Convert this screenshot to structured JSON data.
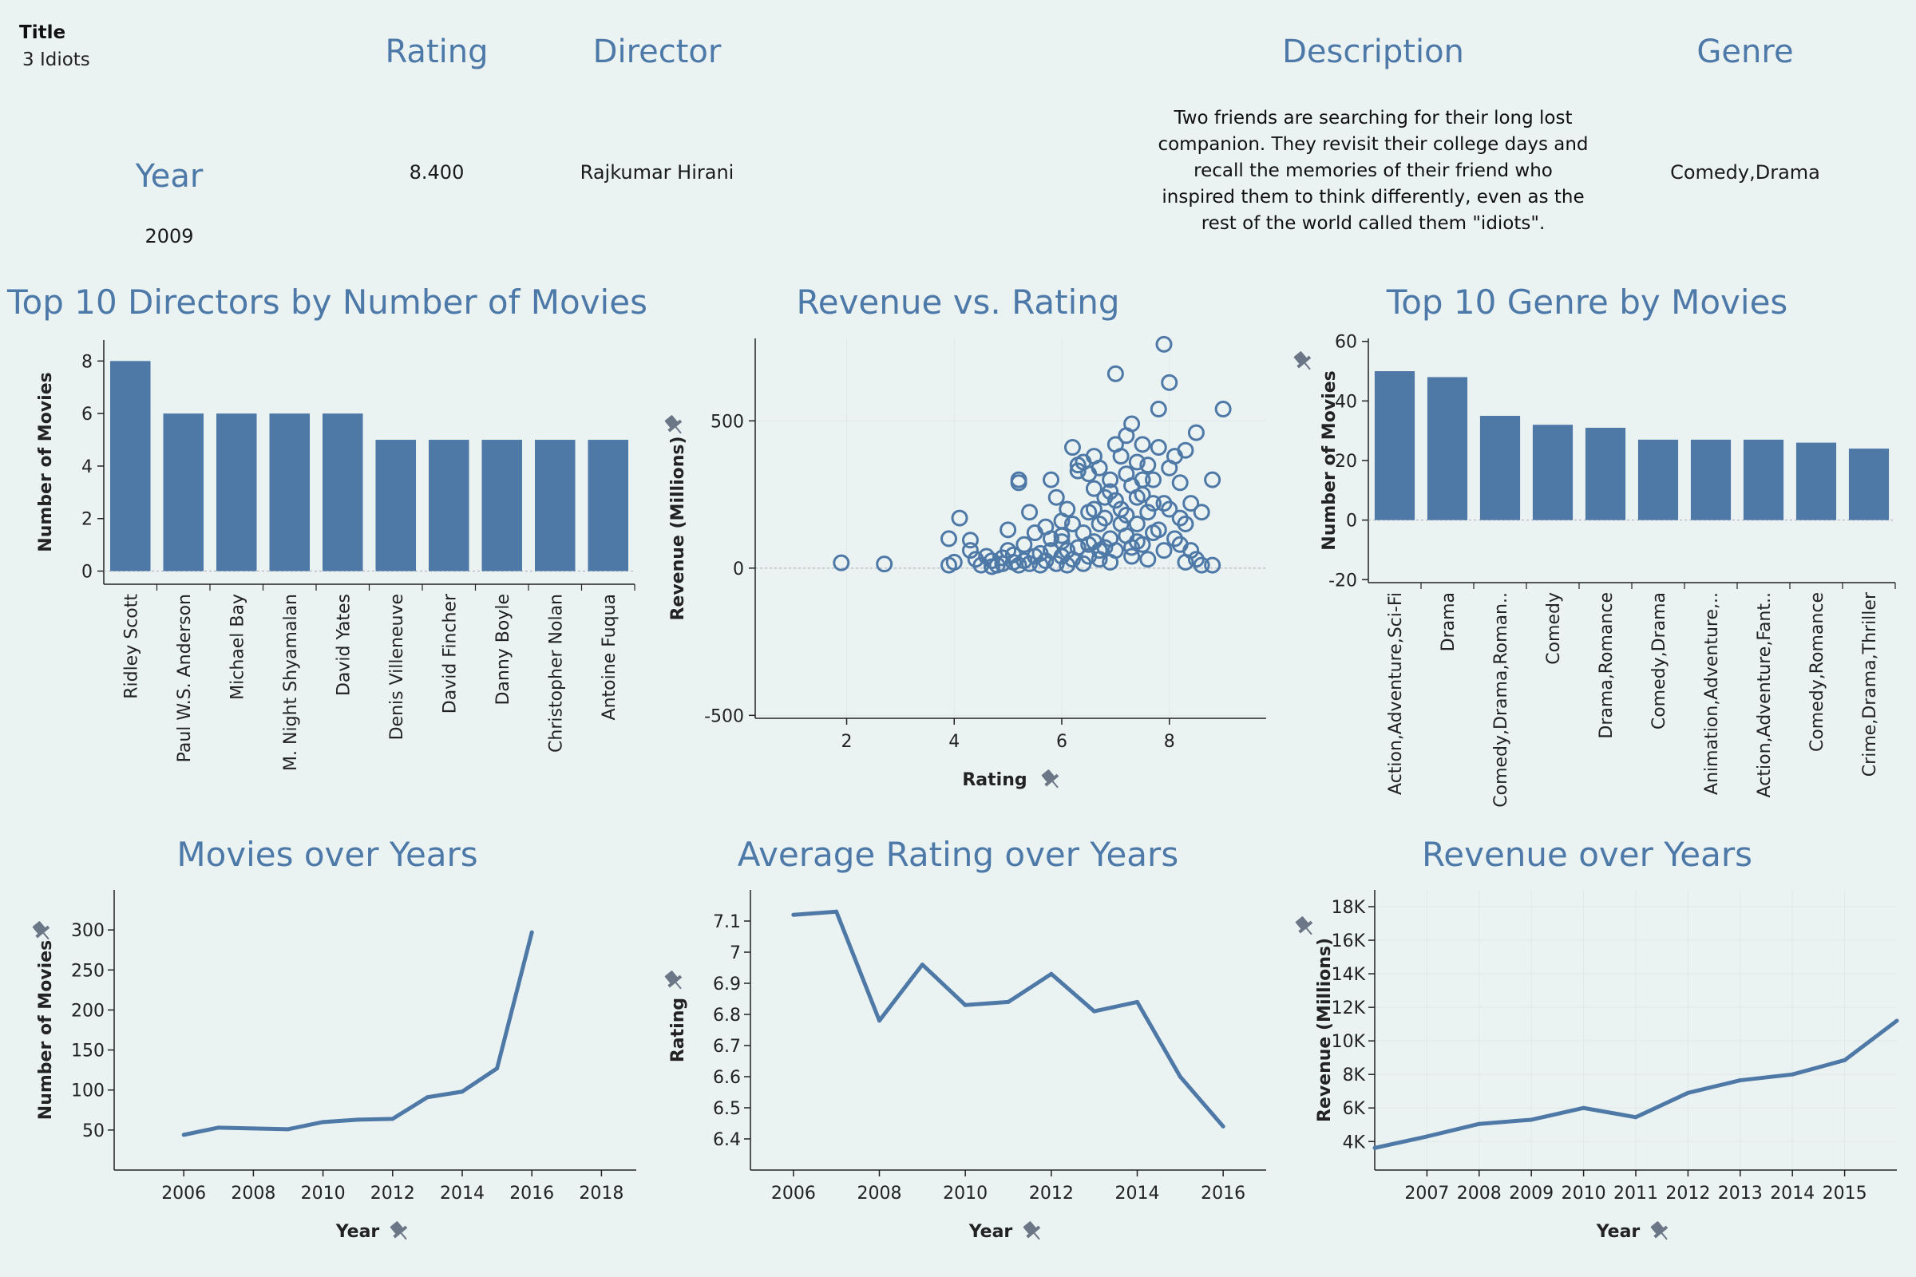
{
  "details": {
    "title_label": "Title",
    "title_value": "3 Idiots",
    "rating_label": "Rating",
    "rating_value": "8.400",
    "director_label": "Director",
    "director_value": "Rajkumar Hirani",
    "description_label": "Description",
    "description_value": "Two friends are searching for their long lost companion. They revisit their college days and recall the memories of their friend who inspired them to think differently, even as the rest of the world called them \"idiots\".",
    "genre_label": "Genre",
    "genre_value": "Comedy,Drama",
    "year_label": "Year",
    "year_value": "2009"
  },
  "colors": {
    "accent": "#4e79a7",
    "background": "#ebf2f2"
  },
  "icons": [
    "pin-icon"
  ],
  "chart_data": [
    {
      "id": "directors",
      "type": "bar",
      "title": "Top 10 Directors by Number of Movies",
      "xlabel": "",
      "ylabel": "Number of Movies",
      "categories": [
        "Ridley Scott",
        "Paul W.S. Anderson",
        "Michael Bay",
        "M. Night Shyamalan",
        "David Yates",
        "Denis Villeneuve",
        "David Fincher",
        "Danny Boyle",
        "Christopher Nolan",
        "Antoine Fuqua"
      ],
      "values": [
        8,
        6,
        6,
        6,
        6,
        5,
        5,
        5,
        5,
        5
      ],
      "ylim": [
        -0.5,
        8.8
      ],
      "yticks": [
        0,
        2,
        4,
        6,
        8
      ]
    },
    {
      "id": "revenue_rating",
      "type": "scatter",
      "title": "Revenue vs. Rating",
      "xlabel": "Rating",
      "ylabel": "Revenue (Millions)",
      "xlim": [
        0.3,
        9.8
      ],
      "ylim": [
        -510,
        780
      ],
      "xticks": [
        2,
        4,
        6,
        8
      ],
      "yticks": [
        -500,
        0,
        500
      ],
      "points": [
        [
          1.9,
          18
        ],
        [
          2.7,
          14
        ],
        [
          3.9,
          10
        ],
        [
          4.0,
          20
        ],
        [
          3.9,
          100
        ],
        [
          4.1,
          170
        ],
        [
          4.3,
          95
        ],
        [
          4.3,
          60
        ],
        [
          4.4,
          30
        ],
        [
          4.5,
          10
        ],
        [
          4.6,
          40
        ],
        [
          4.7,
          25
        ],
        [
          4.8,
          10
        ],
        [
          4.9,
          35
        ],
        [
          5.0,
          60
        ],
        [
          5.0,
          130
        ],
        [
          5.1,
          20
        ],
        [
          5.2,
          290
        ],
        [
          5.2,
          300
        ],
        [
          5.3,
          80
        ],
        [
          5.4,
          190
        ],
        [
          5.5,
          120
        ],
        [
          5.6,
          50
        ],
        [
          5.7,
          140
        ],
        [
          5.8,
          300
        ],
        [
          5.9,
          240
        ],
        [
          6.0,
          90
        ],
        [
          6.0,
          160
        ],
        [
          6.1,
          60
        ],
        [
          6.1,
          200
        ],
        [
          6.2,
          410
        ],
        [
          6.3,
          330
        ],
        [
          6.3,
          350
        ],
        [
          6.4,
          360
        ],
        [
          6.5,
          320
        ],
        [
          6.5,
          190
        ],
        [
          6.6,
          270
        ],
        [
          6.6,
          380
        ],
        [
          6.7,
          340
        ],
        [
          6.7,
          150
        ],
        [
          6.8,
          240
        ],
        [
          6.9,
          100
        ],
        [
          6.9,
          300
        ],
        [
          7.0,
          420
        ],
        [
          7.0,
          660
        ],
        [
          7.1,
          380
        ],
        [
          7.1,
          200
        ],
        [
          7.2,
          450
        ],
        [
          7.2,
          320
        ],
        [
          7.3,
          280
        ],
        [
          7.3,
          490
        ],
        [
          7.4,
          360
        ],
        [
          7.4,
          150
        ],
        [
          7.5,
          420
        ],
        [
          7.5,
          250
        ],
        [
          7.6,
          350
        ],
        [
          7.7,
          300
        ],
        [
          7.8,
          540
        ],
        [
          7.8,
          410
        ],
        [
          7.9,
          760
        ],
        [
          7.9,
          220
        ],
        [
          8.0,
          340
        ],
        [
          8.0,
          630
        ],
        [
          8.1,
          380
        ],
        [
          8.2,
          290
        ],
        [
          8.2,
          170
        ],
        [
          8.3,
          400
        ],
        [
          8.4,
          220
        ],
        [
          8.5,
          460
        ],
        [
          8.6,
          190
        ],
        [
          8.8,
          300
        ],
        [
          8.8,
          10
        ],
        [
          9.0,
          540
        ],
        [
          8.6,
          10
        ],
        [
          8.4,
          60
        ],
        [
          8.3,
          20
        ],
        [
          8.1,
          100
        ],
        [
          7.9,
          60
        ],
        [
          7.7,
          120
        ],
        [
          7.6,
          30
        ],
        [
          7.5,
          80
        ],
        [
          7.3,
          40
        ],
        [
          7.2,
          110
        ],
        [
          7.0,
          60
        ],
        [
          6.9,
          20
        ],
        [
          6.8,
          70
        ],
        [
          6.7,
          30
        ],
        [
          6.6,
          90
        ],
        [
          6.5,
          40
        ],
        [
          6.4,
          15
        ],
        [
          6.3,
          70
        ],
        [
          6.2,
          30
        ],
        [
          6.1,
          10
        ],
        [
          6.0,
          40
        ],
        [
          5.9,
          15
        ],
        [
          5.8,
          60
        ],
        [
          5.7,
          25
        ],
        [
          5.6,
          10
        ],
        [
          5.5,
          40
        ],
        [
          5.4,
          15
        ],
        [
          5.3,
          25
        ],
        [
          5.2,
          10
        ],
        [
          5.1,
          45
        ],
        [
          4.9,
          15
        ],
        [
          4.7,
          5
        ],
        [
          7.1,
          150
        ],
        [
          7.4,
          240
        ],
        [
          7.6,
          190
        ],
        [
          7.8,
          130
        ],
        [
          8.0,
          200
        ],
        [
          8.2,
          80
        ],
        [
          7.0,
          230
        ],
        [
          6.8,
          170
        ],
        [
          6.6,
          200
        ],
        [
          6.4,
          120
        ],
        [
          6.2,
          150
        ],
        [
          6.0,
          110
        ],
        [
          5.8,
          100
        ],
        [
          7.3,
          70
        ],
        [
          7.5,
          300
        ],
        [
          7.7,
          220
        ],
        [
          6.9,
          260
        ],
        [
          6.5,
          80
        ],
        [
          7.2,
          180
        ],
        [
          7.4,
          90
        ],
        [
          6.7,
          60
        ],
        [
          8.3,
          150
        ],
        [
          8.5,
          30
        ]
      ]
    },
    {
      "id": "genres",
      "type": "bar",
      "title": "Top 10 Genre by Movies",
      "xlabel": "",
      "ylabel": "Number of Movies",
      "categories": [
        "Action,Adventure,Sci-Fi",
        "Drama",
        "Comedy,Drama,Roman..",
        "Comedy",
        "Drama,Romance",
        "Comedy,Drama",
        "Animation,Adventure,..",
        "Action,Adventure,Fant..",
        "Comedy,Romance",
        "Crime,Drama,Thriller"
      ],
      "values": [
        50,
        48,
        35,
        32,
        31,
        27,
        27,
        27,
        26,
        24
      ],
      "ylim": [
        -21,
        61
      ],
      "yticks": [
        -20,
        0,
        20,
        40,
        60
      ]
    },
    {
      "id": "movies_years",
      "type": "line",
      "title": "Movies over Years",
      "xlabel": "Year",
      "ylabel": "Number of Movies",
      "x": [
        2006,
        2007,
        2008,
        2009,
        2010,
        2011,
        2012,
        2013,
        2014,
        2015,
        2016
      ],
      "values": [
        44,
        53,
        52,
        51,
        60,
        63,
        64,
        91,
        98,
        127,
        297
      ],
      "xlim": [
        2004,
        2019
      ],
      "ylim": [
        0,
        350
      ],
      "xticks": [
        2006,
        2008,
        2010,
        2012,
        2014,
        2016,
        2018
      ],
      "yticks": [
        50,
        100,
        150,
        200,
        250,
        300
      ]
    },
    {
      "id": "rating_years",
      "type": "line",
      "title": "Average Rating over Years",
      "xlabel": "Year",
      "ylabel": "Rating",
      "x": [
        2006,
        2007,
        2008,
        2009,
        2010,
        2011,
        2012,
        2013,
        2014,
        2015,
        2016
      ],
      "values": [
        7.12,
        7.13,
        6.78,
        6.96,
        6.83,
        6.84,
        6.93,
        6.81,
        6.84,
        6.6,
        6.44
      ],
      "xlim": [
        2005,
        2017
      ],
      "ylim": [
        6.3,
        7.2
      ],
      "xticks": [
        2006,
        2008,
        2010,
        2012,
        2014,
        2016
      ],
      "yticks": [
        6.4,
        6.5,
        6.6,
        6.7,
        6.8,
        6.9,
        7.0,
        7.1
      ]
    },
    {
      "id": "revenue_years",
      "type": "line",
      "title": "Revenue over Years",
      "xlabel": "Year",
      "ylabel": "Revenue (Millions)",
      "x": [
        2006,
        2007,
        2008,
        2009,
        2010,
        2011,
        2012,
        2013,
        2014,
        2015,
        2016
      ],
      "values": [
        3620,
        4300,
        5050,
        5300,
        6000,
        5450,
        6900,
        7650,
        8000,
        8850,
        11200
      ],
      "xlim": [
        2006,
        2016
      ],
      "ylim": [
        2300,
        19000
      ],
      "xticks": [
        2007,
        2008,
        2009,
        2010,
        2011,
        2012,
        2013,
        2014,
        2015
      ],
      "xtick_labels": [
        "2007",
        "2008",
        "2009",
        "2010",
        "2011",
        "2012",
        "2013",
        "2014",
        "2015"
      ],
      "yticks": [
        4000,
        6000,
        8000,
        10000,
        12000,
        14000,
        16000,
        18000
      ],
      "ytick_labels": [
        "4K",
        "6K",
        "8K",
        "10K",
        "12K",
        "14K",
        "16K",
        "18K"
      ]
    }
  ]
}
